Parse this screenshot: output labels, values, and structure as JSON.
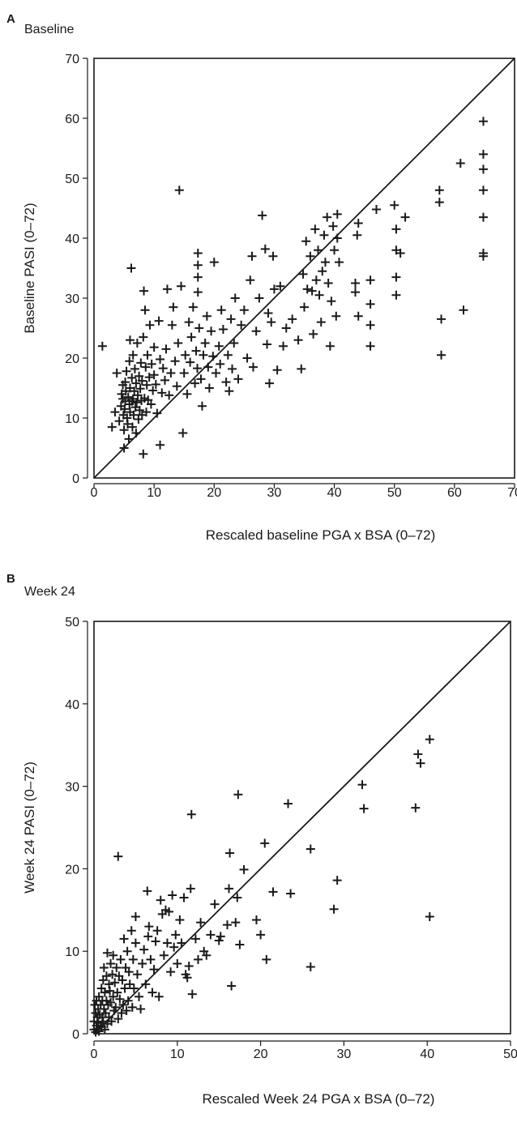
{
  "panels": [
    {
      "letter": "A",
      "caption": "Baseline"
    },
    {
      "letter": "B",
      "caption": "Week 24"
    }
  ],
  "chart_data": [
    {
      "type": "scatter",
      "title": "Baseline",
      "xlabel": "Rescaled baseline PGA x BSA (0–72)",
      "ylabel": "Baseline PASI (0–72)",
      "xlim": [
        0,
        70
      ],
      "ylim": [
        0,
        70
      ],
      "xticks": [
        0,
        10,
        20,
        30,
        40,
        50,
        60,
        70
      ],
      "yticks": [
        0,
        10,
        20,
        30,
        40,
        50,
        60,
        70
      ],
      "marker": "+",
      "reference_line": "identity (y = x)",
      "grid": false,
      "points": [
        [
          1.4,
          22
        ],
        [
          3.0,
          8.5
        ],
        [
          3.5,
          11
        ],
        [
          3.8,
          17.5
        ],
        [
          4.2,
          9.5
        ],
        [
          4.5,
          12
        ],
        [
          4.6,
          14
        ],
        [
          4.8,
          13.2
        ],
        [
          4.8,
          15.5
        ],
        [
          4.9,
          10.5
        ],
        [
          5,
          5
        ],
        [
          5,
          8
        ],
        [
          5.1,
          11.5
        ],
        [
          5.2,
          12.8
        ],
        [
          5.2,
          16
        ],
        [
          5.3,
          14.5
        ],
        [
          5.4,
          17.8
        ],
        [
          5.5,
          10
        ],
        [
          5.6,
          9
        ],
        [
          5.7,
          13.5
        ],
        [
          5.8,
          6.5
        ],
        [
          5.9,
          12.3
        ],
        [
          5.9,
          19.5
        ],
        [
          6,
          11
        ],
        [
          6,
          15
        ],
        [
          6,
          23
        ],
        [
          6.2,
          35
        ],
        [
          6.3,
          12.8
        ],
        [
          6.3,
          16.7
        ],
        [
          6.4,
          8.5
        ],
        [
          6.5,
          13.2
        ],
        [
          6.5,
          20.5
        ],
        [
          6.6,
          10.5
        ],
        [
          6.7,
          14.5
        ],
        [
          6.8,
          18.2
        ],
        [
          6.9,
          11.8
        ],
        [
          7,
          7.5
        ],
        [
          7,
          15.8
        ],
        [
          7.1,
          12.6
        ],
        [
          7.2,
          22.5
        ],
        [
          7.3,
          13.8
        ],
        [
          7.4,
          9.8
        ],
        [
          7.5,
          17
        ],
        [
          7.6,
          11.3
        ],
        [
          7.7,
          14.9
        ],
        [
          7.8,
          19.2
        ],
        [
          7.9,
          12.9
        ],
        [
          8,
          10.5
        ],
        [
          8,
          16.2
        ],
        [
          8.2,
          4
        ],
        [
          8.2,
          23.5
        ],
        [
          8.3,
          31.2
        ],
        [
          8.4,
          13.3
        ],
        [
          8.5,
          28
        ],
        [
          8.6,
          18.5
        ],
        [
          8.7,
          11
        ],
        [
          8.8,
          15.5
        ],
        [
          8.9,
          20.5
        ],
        [
          9,
          13
        ],
        [
          9.2,
          16.8
        ],
        [
          9.3,
          25.5
        ],
        [
          9.5,
          12.3
        ],
        [
          9.6,
          19
        ],
        [
          9.8,
          14.6
        ],
        [
          10,
          17.2
        ],
        [
          10,
          21.8
        ],
        [
          10.3,
          15.6
        ],
        [
          10.5,
          10.8
        ],
        [
          10.8,
          26.2
        ],
        [
          11,
          19.8
        ],
        [
          11,
          5.5
        ],
        [
          11.3,
          14.2
        ],
        [
          11.5,
          18.3
        ],
        [
          11.8,
          16.3
        ],
        [
          12,
          21.5
        ],
        [
          12.2,
          31.5
        ],
        [
          12.5,
          13.8
        ],
        [
          12.8,
          17.5
        ],
        [
          13,
          25.5
        ],
        [
          13.2,
          28.5
        ],
        [
          13.5,
          19.5
        ],
        [
          13.8,
          15.3
        ],
        [
          14,
          22.5
        ],
        [
          14.2,
          48
        ],
        [
          14.5,
          32
        ],
        [
          14.8,
          7.5
        ],
        [
          15,
          17.5
        ],
        [
          15.2,
          20.5
        ],
        [
          15.5,
          14
        ],
        [
          15.8,
          26
        ],
        [
          16,
          19.3
        ],
        [
          16.2,
          23.5
        ],
        [
          16.5,
          28.5
        ],
        [
          16.8,
          15.8
        ],
        [
          17,
          21.2
        ],
        [
          17.2,
          18.3
        ],
        [
          17.3,
          31
        ],
        [
          17.3,
          33.5
        ],
        [
          17.3,
          35.5
        ],
        [
          17.3,
          37.5
        ],
        [
          17.5,
          25
        ],
        [
          17.8,
          16.5
        ],
        [
          18,
          12
        ],
        [
          18.2,
          20.5
        ],
        [
          18.5,
          22.5
        ],
        [
          18.8,
          27
        ],
        [
          19,
          18.5
        ],
        [
          19.2,
          15
        ],
        [
          19.5,
          24.5
        ],
        [
          19.8,
          20.3
        ],
        [
          20,
          36
        ],
        [
          20.3,
          17.5
        ],
        [
          20.8,
          22
        ],
        [
          21,
          19
        ],
        [
          21.2,
          28
        ],
        [
          21.5,
          24.8
        ],
        [
          22,
          16
        ],
        [
          22.3,
          20.5
        ],
        [
          22.5,
          14.5
        ],
        [
          22.8,
          26.5
        ],
        [
          23,
          18.2
        ],
        [
          23.3,
          22.5
        ],
        [
          23.5,
          30
        ],
        [
          24,
          16.5
        ],
        [
          24.5,
          25.5
        ],
        [
          25,
          28
        ],
        [
          25.5,
          20
        ],
        [
          26,
          33
        ],
        [
          26.3,
          37
        ],
        [
          26.5,
          18.5
        ],
        [
          27,
          24.5
        ],
        [
          27.5,
          30
        ],
        [
          28,
          43.8
        ],
        [
          28.5,
          38.2
        ],
        [
          28.8,
          22.3
        ],
        [
          29,
          27.5
        ],
        [
          29.2,
          15.8
        ],
        [
          29.5,
          26
        ],
        [
          29.8,
          37
        ],
        [
          30,
          31.5
        ],
        [
          30.5,
          18
        ],
        [
          31,
          32
        ],
        [
          31.5,
          22
        ],
        [
          32,
          25
        ],
        [
          33,
          26.5
        ],
        [
          34,
          23
        ],
        [
          34.5,
          18.2
        ],
        [
          34.8,
          34
        ],
        [
          35,
          28.5
        ],
        [
          35.3,
          39.5
        ],
        [
          35.5,
          31.5
        ],
        [
          36,
          37
        ],
        [
          36.3,
          31.2
        ],
        [
          36.5,
          24
        ],
        [
          36.8,
          41.5
        ],
        [
          37,
          33
        ],
        [
          37.3,
          38
        ],
        [
          37.5,
          30.5
        ],
        [
          37.8,
          26
        ],
        [
          38,
          34.5
        ],
        [
          38.3,
          40.5
        ],
        [
          38.5,
          36
        ],
        [
          38.8,
          43.5
        ],
        [
          39,
          32.5
        ],
        [
          39.3,
          22
        ],
        [
          39.5,
          29.5
        ],
        [
          39.8,
          42
        ],
        [
          40,
          38
        ],
        [
          40.3,
          27
        ],
        [
          40.5,
          40
        ],
        [
          40.5,
          44
        ],
        [
          40.8,
          36
        ],
        [
          43.5,
          32.5
        ],
        [
          43.5,
          31
        ],
        [
          43.8,
          40.5
        ],
        [
          44,
          42.5
        ],
        [
          44,
          27
        ],
        [
          46,
          33
        ],
        [
          46,
          29
        ],
        [
          46,
          25.5
        ],
        [
          46,
          22
        ],
        [
          47,
          44.8
        ],
        [
          50,
          45.5
        ],
        [
          50.3,
          41.5
        ],
        [
          50.3,
          38
        ],
        [
          50.3,
          33.5
        ],
        [
          50.3,
          30.5
        ],
        [
          51,
          37.5
        ],
        [
          51.8,
          43.5
        ],
        [
          57.5,
          48
        ],
        [
          57.5,
          46
        ],
        [
          57.8,
          26.5
        ],
        [
          57.8,
          20.5
        ],
        [
          61,
          52.5
        ],
        [
          61.5,
          28
        ],
        [
          64.8,
          59.5
        ],
        [
          64.8,
          54
        ],
        [
          64.8,
          51.5
        ],
        [
          64.8,
          48
        ],
        [
          64.8,
          43.5
        ],
        [
          64.8,
          37.5
        ],
        [
          64.8,
          37
        ]
      ]
    },
    {
      "type": "scatter",
      "title": "Week 24",
      "xlabel": "Rescaled Week 24 PGA x BSA (0–72)",
      "ylabel": "Week 24 PASI (0–72)",
      "xlim": [
        0,
        50
      ],
      "ylim": [
        0,
        50
      ],
      "xticks": [
        0,
        10,
        20,
        30,
        40,
        50
      ],
      "yticks": [
        0,
        10,
        20,
        30,
        40,
        50
      ],
      "marker": "+",
      "reference_line": "identity (y = x)",
      "grid": false,
      "points": [
        [
          0,
          0.5
        ],
        [
          0,
          1.5
        ],
        [
          0.1,
          3.5
        ],
        [
          0.2,
          0.2
        ],
        [
          0.2,
          2.5
        ],
        [
          0.3,
          1
        ],
        [
          0.3,
          4
        ],
        [
          0.4,
          0.6
        ],
        [
          0.4,
          2
        ],
        [
          0.5,
          3
        ],
        [
          0.5,
          1.3
        ],
        [
          0.6,
          0.3
        ],
        [
          0.6,
          4.5
        ],
        [
          0.7,
          2.3
        ],
        [
          0.8,
          1
        ],
        [
          0.8,
          3.5
        ],
        [
          0.9,
          0.8
        ],
        [
          0.9,
          5.5
        ],
        [
          1,
          2
        ],
        [
          1,
          4
        ],
        [
          1.1,
          1.5
        ],
        [
          1.1,
          6.5
        ],
        [
          1.2,
          3
        ],
        [
          1.2,
          8
        ],
        [
          1.3,
          0.5
        ],
        [
          1.3,
          5
        ],
        [
          1.4,
          2.5
        ],
        [
          1.5,
          7
        ],
        [
          1.5,
          4
        ],
        [
          1.6,
          1.2
        ],
        [
          1.6,
          9.8
        ],
        [
          1.7,
          3.5
        ],
        [
          1.8,
          6
        ],
        [
          1.8,
          2
        ],
        [
          1.9,
          5.2
        ],
        [
          2,
          8.5
        ],
        [
          2,
          3.8
        ],
        [
          2.1,
          1.5
        ],
        [
          2.2,
          7.2
        ],
        [
          2.3,
          4.5
        ],
        [
          2.3,
          9.5
        ],
        [
          2.4,
          2.8
        ],
        [
          2.5,
          6.2
        ],
        [
          2.6,
          3.2
        ],
        [
          2.7,
          8
        ],
        [
          2.8,
          5
        ],
        [
          2.9,
          21.5
        ],
        [
          2.9,
          1.8
        ],
        [
          3,
          7
        ],
        [
          3.1,
          4.2
        ],
        [
          3.2,
          9
        ],
        [
          3.3,
          2.5
        ],
        [
          3.4,
          6.5
        ],
        [
          3.5,
          3.5
        ],
        [
          3.6,
          11.5
        ],
        [
          3.7,
          5.5
        ],
        [
          3.8,
          8
        ],
        [
          3.9,
          2.8
        ],
        [
          4,
          10
        ],
        [
          4.1,
          4
        ],
        [
          4.2,
          7.5
        ],
        [
          4.3,
          6
        ],
        [
          4.5,
          12.5
        ],
        [
          4.6,
          3.2
        ],
        [
          4.7,
          9
        ],
        [
          4.8,
          5.5
        ],
        [
          5,
          14.2
        ],
        [
          5,
          11
        ],
        [
          5.2,
          7.2
        ],
        [
          5.4,
          4.5
        ],
        [
          5.6,
          3
        ],
        [
          5.8,
          8.5
        ],
        [
          6,
          10.2
        ],
        [
          6.2,
          6
        ],
        [
          6.4,
          17.3
        ],
        [
          6.5,
          11.8
        ],
        [
          6.6,
          13
        ],
        [
          6.8,
          9
        ],
        [
          7,
          5
        ],
        [
          7.2,
          7.8
        ],
        [
          7.4,
          11.2
        ],
        [
          7.6,
          12.5
        ],
        [
          7.8,
          4.5
        ],
        [
          8,
          16.2
        ],
        [
          8.2,
          14.5
        ],
        [
          8.4,
          9.5
        ],
        [
          8.6,
          15
        ],
        [
          8.8,
          11
        ],
        [
          9,
          14.8
        ],
        [
          9.2,
          7.5
        ],
        [
          9.4,
          16.8
        ],
        [
          9.6,
          10.5
        ],
        [
          9.8,
          12
        ],
        [
          10,
          8.5
        ],
        [
          10.3,
          13.8
        ],
        [
          10.5,
          11
        ],
        [
          10.8,
          16.5
        ],
        [
          11,
          7.2
        ],
        [
          11.2,
          6.8
        ],
        [
          11.4,
          8.2
        ],
        [
          11.6,
          17.6
        ],
        [
          11.7,
          26.6
        ],
        [
          11.8,
          4.8
        ],
        [
          12.2,
          11.5
        ],
        [
          12.5,
          9
        ],
        [
          12.8,
          13.5
        ],
        [
          13.2,
          10
        ],
        [
          13.5,
          9.5
        ],
        [
          14,
          12
        ],
        [
          14.5,
          15.7
        ],
        [
          15,
          11.3
        ],
        [
          15.2,
          11.8
        ],
        [
          16,
          13.2
        ],
        [
          16.2,
          17.6
        ],
        [
          16.3,
          21.9
        ],
        [
          16.5,
          5.8
        ],
        [
          17,
          13.5
        ],
        [
          17.2,
          16.5
        ],
        [
          17.3,
          29
        ],
        [
          17.5,
          10.8
        ],
        [
          18,
          19.9
        ],
        [
          19.5,
          13.8
        ],
        [
          20,
          12
        ],
        [
          20.5,
          23.1
        ],
        [
          20.7,
          9
        ],
        [
          21.5,
          17.2
        ],
        [
          23.3,
          27.9
        ],
        [
          23.6,
          17
        ],
        [
          26,
          22.4
        ],
        [
          26,
          8.1
        ],
        [
          28.8,
          15.1
        ],
        [
          29.2,
          18.6
        ],
        [
          32.2,
          30.2
        ],
        [
          32.4,
          27.3
        ],
        [
          38.6,
          27.4
        ],
        [
          38.9,
          33.9
        ],
        [
          39.2,
          32.8
        ],
        [
          40.3,
          35.7
        ],
        [
          40.3,
          14.2
        ]
      ]
    }
  ]
}
